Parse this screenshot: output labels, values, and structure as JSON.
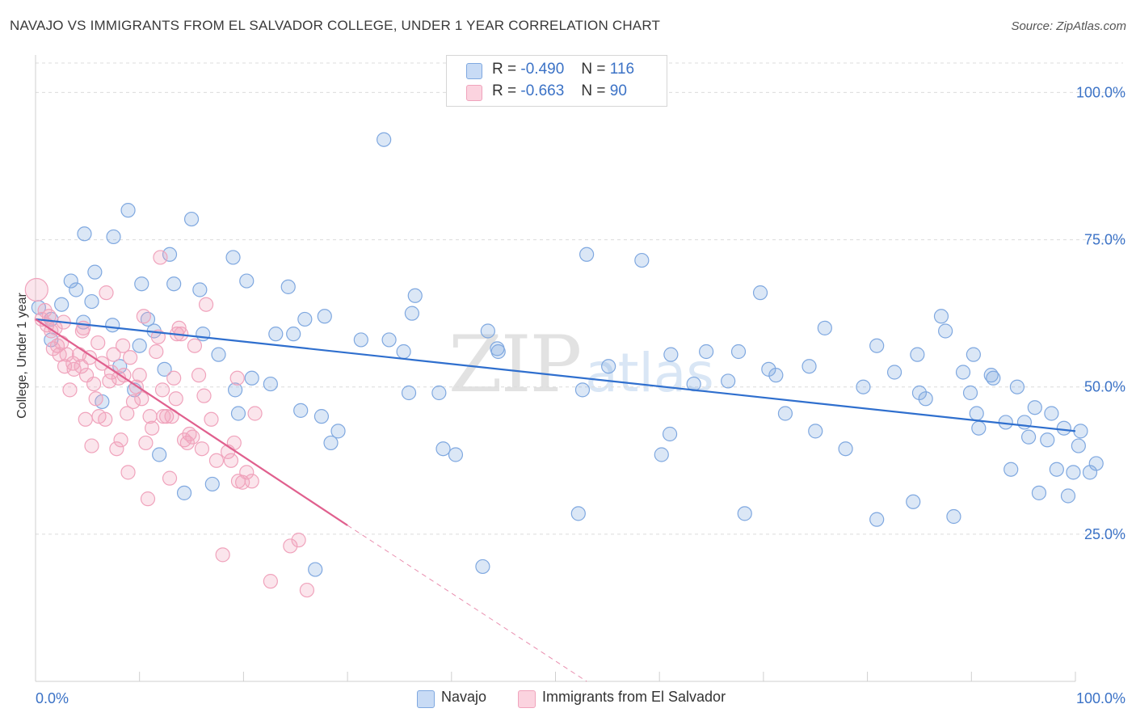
{
  "title": "NAVAJO VS IMMIGRANTS FROM EL SALVADOR COLLEGE, UNDER 1 YEAR CORRELATION CHART",
  "source": "Source: ZipAtlas.com",
  "watermark": {
    "zip": "ZIP",
    "atlas": "atlas"
  },
  "legend": {
    "rows": [
      {
        "r_label": "R =",
        "r_value": "-0.490",
        "n_label": "N =",
        "n_value": "116"
      },
      {
        "r_label": "R =",
        "r_value": "-0.663",
        "n_label": "N =",
        "n_value": "90"
      }
    ]
  },
  "colors": {
    "navajo": "#7fa8e0",
    "navajo_line": "#2f6fce",
    "salvador": "#f0a3bc",
    "salvador_line": "#e0608e",
    "grid": "#dcdcdc",
    "axis_text": "#3b72c6"
  },
  "chart_data": {
    "type": "scatter",
    "title": "NAVAJO VS IMMIGRANTS FROM EL SALVADOR COLLEGE, UNDER 1 YEAR CORRELATION CHART",
    "xlabel": "",
    "ylabel": "College, Under 1 year",
    "xlim": [
      0,
      100
    ],
    "ylim": [
      0,
      105
    ],
    "x_tick_labels": [
      "0.0%",
      "100.0%"
    ],
    "y_ticks": [
      25,
      50,
      75,
      100
    ],
    "y_tick_labels": [
      "25.0%",
      "50.0%",
      "75.0%",
      "100.0%"
    ],
    "grid": true,
    "legend_position": "bottom",
    "series": [
      {
        "name": "Navajo",
        "r": -0.49,
        "n": 116,
        "trend": {
          "x": [
            0,
            100
          ],
          "y": [
            61.5,
            42.5
          ]
        },
        "points": [
          [
            0.3,
            63.5
          ],
          [
            1.5,
            61.5
          ],
          [
            2.5,
            64
          ],
          [
            1.5,
            58
          ],
          [
            3.4,
            68
          ],
          [
            3.9,
            66.5
          ],
          [
            4.6,
            61
          ],
          [
            4.7,
            76
          ],
          [
            5.4,
            64.5
          ],
          [
            5.7,
            69.5
          ],
          [
            6.4,
            47.5
          ],
          [
            7.4,
            60.5
          ],
          [
            7.5,
            75.5
          ],
          [
            8.1,
            53.5
          ],
          [
            8.9,
            80
          ],
          [
            9.5,
            49.5
          ],
          [
            10,
            57
          ],
          [
            10.2,
            67.5
          ],
          [
            10.8,
            61.5
          ],
          [
            11.4,
            59.5
          ],
          [
            11.9,
            38.5
          ],
          [
            12.4,
            53
          ],
          [
            12.9,
            72.5
          ],
          [
            13.3,
            67.5
          ],
          [
            14.3,
            32
          ],
          [
            15,
            78.5
          ],
          [
            15.8,
            66.5
          ],
          [
            16.1,
            59
          ],
          [
            17,
            33.5
          ],
          [
            17.6,
            55.5
          ],
          [
            19,
            72
          ],
          [
            19.2,
            49.5
          ],
          [
            19.5,
            45.5
          ],
          [
            20.3,
            68
          ],
          [
            20.8,
            51.5
          ],
          [
            22.6,
            50.5
          ],
          [
            23.1,
            59
          ],
          [
            24.3,
            67
          ],
          [
            24.8,
            59
          ],
          [
            25.5,
            46
          ],
          [
            25.9,
            61.5
          ],
          [
            26.9,
            19
          ],
          [
            27.5,
            45
          ],
          [
            27.8,
            62
          ],
          [
            28.4,
            40.5
          ],
          [
            29.1,
            42.5
          ],
          [
            31.3,
            58
          ],
          [
            33.5,
            92
          ],
          [
            34,
            58
          ],
          [
            35.4,
            56
          ],
          [
            35.9,
            49
          ],
          [
            36.2,
            62.5
          ],
          [
            36.5,
            65.5
          ],
          [
            38.8,
            49
          ],
          [
            39.2,
            39.5
          ],
          [
            40.4,
            38.5
          ],
          [
            43,
            19.5
          ],
          [
            43.5,
            59.5
          ],
          [
            44.4,
            56.5
          ],
          [
            44.5,
            56
          ],
          [
            52.2,
            28.5
          ],
          [
            52.6,
            49.5
          ],
          [
            53,
            72.5
          ],
          [
            55.1,
            53.5
          ],
          [
            58.3,
            71.5
          ],
          [
            60.2,
            38.5
          ],
          [
            61,
            42
          ],
          [
            61.1,
            55.5
          ],
          [
            63.3,
            50.5
          ],
          [
            64.5,
            56
          ],
          [
            66.6,
            51
          ],
          [
            67.6,
            56
          ],
          [
            68.2,
            28.5
          ],
          [
            69.7,
            66
          ],
          [
            70.5,
            53
          ],
          [
            71.2,
            52
          ],
          [
            72.1,
            45.5
          ],
          [
            74.4,
            53.5
          ],
          [
            75.9,
            60
          ],
          [
            77.9,
            39.5
          ],
          [
            79.6,
            50
          ],
          [
            80.9,
            57
          ],
          [
            80.9,
            27.5
          ],
          [
            82.6,
            52.5
          ],
          [
            84.4,
            30.5
          ],
          [
            84.8,
            55.5
          ],
          [
            85.6,
            48
          ],
          [
            87.1,
            62
          ],
          [
            87.5,
            59.5
          ],
          [
            88.3,
            28
          ],
          [
            89.2,
            52.5
          ],
          [
            89.9,
            49
          ],
          [
            90.2,
            55.5
          ],
          [
            90.5,
            45.5
          ],
          [
            90.7,
            43
          ],
          [
            91.9,
            52
          ],
          [
            92.1,
            51.5
          ],
          [
            93.3,
            44
          ],
          [
            93.8,
            36
          ],
          [
            94.4,
            50
          ],
          [
            95.1,
            44
          ],
          [
            95.5,
            41.5
          ],
          [
            96.1,
            46.5
          ],
          [
            96.5,
            32
          ],
          [
            97.3,
            41
          ],
          [
            97.7,
            45.5
          ],
          [
            98.2,
            36
          ],
          [
            98.9,
            43
          ],
          [
            99.3,
            31.5
          ],
          [
            99.8,
            35.5
          ],
          [
            100.3,
            40
          ],
          [
            101.4,
            35.5
          ],
          [
            102,
            37
          ],
          [
            100.5,
            42.5
          ],
          [
            85,
            49
          ],
          [
            75,
            42.5
          ]
        ]
      },
      {
        "name": "Immigrants from El Salvador",
        "r": -0.663,
        "n": 90,
        "trend": {
          "x": [
            0,
            30
          ],
          "y": [
            61.5,
            26.5
          ]
        },
        "trend_dashed": {
          "x": [
            30,
            53
          ],
          "y": [
            26.5,
            0
          ]
        },
        "points": [
          [
            0.1,
            66.5
          ],
          [
            0.6,
            61.5
          ],
          [
            0.9,
            63
          ],
          [
            1.1,
            60.5
          ],
          [
            1.3,
            62
          ],
          [
            1.5,
            59.5
          ],
          [
            1.7,
            56.5
          ],
          [
            1.9,
            60
          ],
          [
            2.1,
            57
          ],
          [
            2.3,
            55.5
          ],
          [
            2.5,
            57.5
          ],
          [
            2.7,
            61
          ],
          [
            2.8,
            53.5
          ],
          [
            3,
            55.5
          ],
          [
            3.3,
            49.5
          ],
          [
            3.6,
            54
          ],
          [
            3.7,
            53
          ],
          [
            4.2,
            55.5
          ],
          [
            4.4,
            53.5
          ],
          [
            4.5,
            59.5
          ],
          [
            4.6,
            60
          ],
          [
            4.8,
            44.5
          ],
          [
            4.9,
            52
          ],
          [
            5.2,
            55
          ],
          [
            5.4,
            40
          ],
          [
            5.6,
            50.5
          ],
          [
            5.8,
            48
          ],
          [
            6,
            57.5
          ],
          [
            6.1,
            45
          ],
          [
            6.4,
            54
          ],
          [
            6.7,
            44.5
          ],
          [
            6.8,
            66
          ],
          [
            7.1,
            51
          ],
          [
            7.3,
            52.5
          ],
          [
            7.5,
            55.5
          ],
          [
            7.8,
            39.5
          ],
          [
            8,
            51.5
          ],
          [
            8.2,
            41
          ],
          [
            8.4,
            57
          ],
          [
            8.5,
            52
          ],
          [
            8.8,
            45.5
          ],
          [
            8.9,
            35.5
          ],
          [
            9.1,
            55
          ],
          [
            9.4,
            47.5
          ],
          [
            9.7,
            50
          ],
          [
            10,
            52
          ],
          [
            10.2,
            48
          ],
          [
            10.4,
            62
          ],
          [
            10.6,
            40.5
          ],
          [
            10.8,
            31
          ],
          [
            11,
            45
          ],
          [
            11.2,
            43
          ],
          [
            11.6,
            56
          ],
          [
            11.8,
            58.5
          ],
          [
            12,
            72
          ],
          [
            12.2,
            49.5
          ],
          [
            12.3,
            45
          ],
          [
            12.6,
            45
          ],
          [
            12.9,
            34.5
          ],
          [
            13.3,
            51.5
          ],
          [
            13.5,
            48
          ],
          [
            13.6,
            59
          ],
          [
            13.8,
            60
          ],
          [
            14,
            59
          ],
          [
            14.3,
            41
          ],
          [
            14.6,
            40.5
          ],
          [
            14.8,
            42
          ],
          [
            15.1,
            41.5
          ],
          [
            15.3,
            57
          ],
          [
            15.7,
            52
          ],
          [
            16,
            39.5
          ],
          [
            16.2,
            48.5
          ],
          [
            16.4,
            64
          ],
          [
            16.9,
            44.5
          ],
          [
            17.4,
            37.5
          ],
          [
            18,
            21.5
          ],
          [
            18.5,
            39
          ],
          [
            18.8,
            37.5
          ],
          [
            19.1,
            40.5
          ],
          [
            19.4,
            51.5
          ],
          [
            19.5,
            34
          ],
          [
            19.9,
            33.8
          ],
          [
            20.3,
            35.5
          ],
          [
            20.8,
            34
          ],
          [
            21.1,
            45.5
          ],
          [
            22.6,
            17
          ],
          [
            24.5,
            23
          ],
          [
            25.3,
            24
          ],
          [
            26.1,
            15.5
          ],
          [
            13.1,
            45
          ]
        ]
      }
    ]
  }
}
